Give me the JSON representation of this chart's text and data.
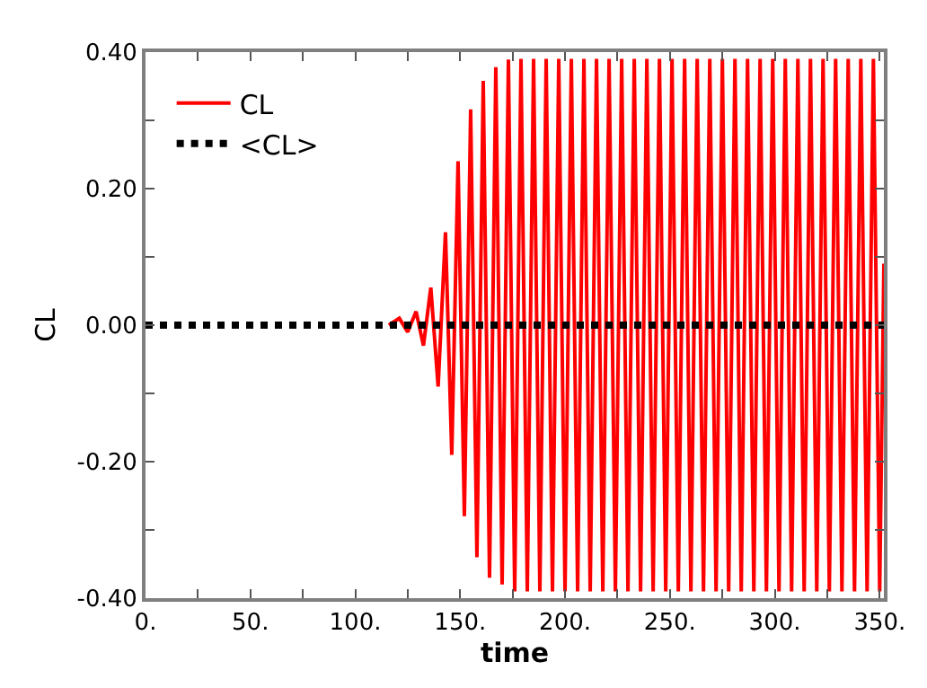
{
  "chart_data": {
    "type": "line",
    "xlabel": "time",
    "ylabel": "CL",
    "legend": "top left",
    "grid": false,
    "xlim": [
      0,
      352
    ],
    "ylim": [
      -0.4,
      0.4
    ],
    "xticks": [
      {
        "value": 0,
        "label": "0."
      },
      {
        "value": 25,
        "label": null
      },
      {
        "value": 50,
        "label": "50."
      },
      {
        "value": 75,
        "label": null
      },
      {
        "value": 100,
        "label": "100."
      },
      {
        "value": 125,
        "label": null
      },
      {
        "value": 150,
        "label": "150."
      },
      {
        "value": 175,
        "label": null
      },
      {
        "value": 200,
        "label": "200."
      },
      {
        "value": 225,
        "label": null
      },
      {
        "value": 250,
        "label": "250."
      },
      {
        "value": 275,
        "label": null
      },
      {
        "value": 300,
        "label": "300."
      },
      {
        "value": 325,
        "label": null
      },
      {
        "value": 350,
        "label": "350."
      }
    ],
    "yticks": [
      {
        "value": -0.4,
        "label": "-0.40"
      },
      {
        "value": -0.3,
        "label": null
      },
      {
        "value": -0.2,
        "label": "-0.20"
      },
      {
        "value": -0.1,
        "label": null
      },
      {
        "value": 0,
        "label": "0.00"
      },
      {
        "value": 0.1,
        "label": null
      },
      {
        "value": 0.2,
        "label": "0.20"
      },
      {
        "value": 0.3,
        "label": null
      },
      {
        "value": 0.4,
        "label": "0.40"
      }
    ],
    "series": [
      {
        "name": "CL",
        "color": "#ff0000",
        "line_style": "solid",
        "x": [
          116,
          121,
          125,
          129,
          132.5,
          136,
          139.5,
          143,
          146,
          149,
          152,
          155,
          158,
          161,
          164,
          167,
          170,
          173,
          176,
          179,
          182,
          185,
          188,
          191,
          194,
          197,
          200,
          203,
          206,
          209,
          212,
          215,
          218,
          221,
          224,
          227,
          230,
          233,
          236,
          239,
          242,
          245,
          248,
          251,
          254,
          257,
          260,
          263,
          266,
          269,
          272,
          275,
          278,
          281,
          284,
          287,
          290,
          293,
          296,
          299,
          302,
          305,
          308,
          311,
          314,
          317,
          320,
          323,
          326,
          329,
          332,
          335,
          338,
          341,
          344,
          347,
          350,
          352
        ],
        "values": [
          0,
          0.01,
          -0.01,
          0.02,
          -0.03,
          0.055,
          -0.09,
          0.136,
          -0.19,
          0.24,
          -0.28,
          0.316,
          -0.34,
          0.358,
          -0.37,
          0.378,
          -0.38,
          0.389,
          -0.39,
          0.39,
          -0.39,
          0.39,
          -0.39,
          0.39,
          -0.39,
          0.39,
          -0.39,
          0.39,
          -0.39,
          0.39,
          -0.39,
          0.39,
          -0.39,
          0.39,
          -0.39,
          0.39,
          -0.39,
          0.39,
          -0.39,
          0.39,
          -0.39,
          0.39,
          -0.39,
          0.39,
          -0.39,
          0.39,
          -0.39,
          0.39,
          -0.39,
          0.39,
          -0.39,
          0.39,
          -0.39,
          0.39,
          -0.39,
          0.39,
          -0.39,
          0.39,
          -0.39,
          0.39,
          -0.39,
          0.39,
          -0.39,
          0.39,
          -0.39,
          0.39,
          -0.39,
          0.39,
          -0.39,
          0.39,
          -0.39,
          0.39,
          -0.39,
          0.39,
          -0.39,
          0.39,
          -0.39,
          0.09
        ]
      },
      {
        "name": "<CL>",
        "color": "#000000",
        "line_style": "dotted",
        "x": [
          0,
          352
        ],
        "values": [
          0,
          0
        ]
      }
    ]
  }
}
